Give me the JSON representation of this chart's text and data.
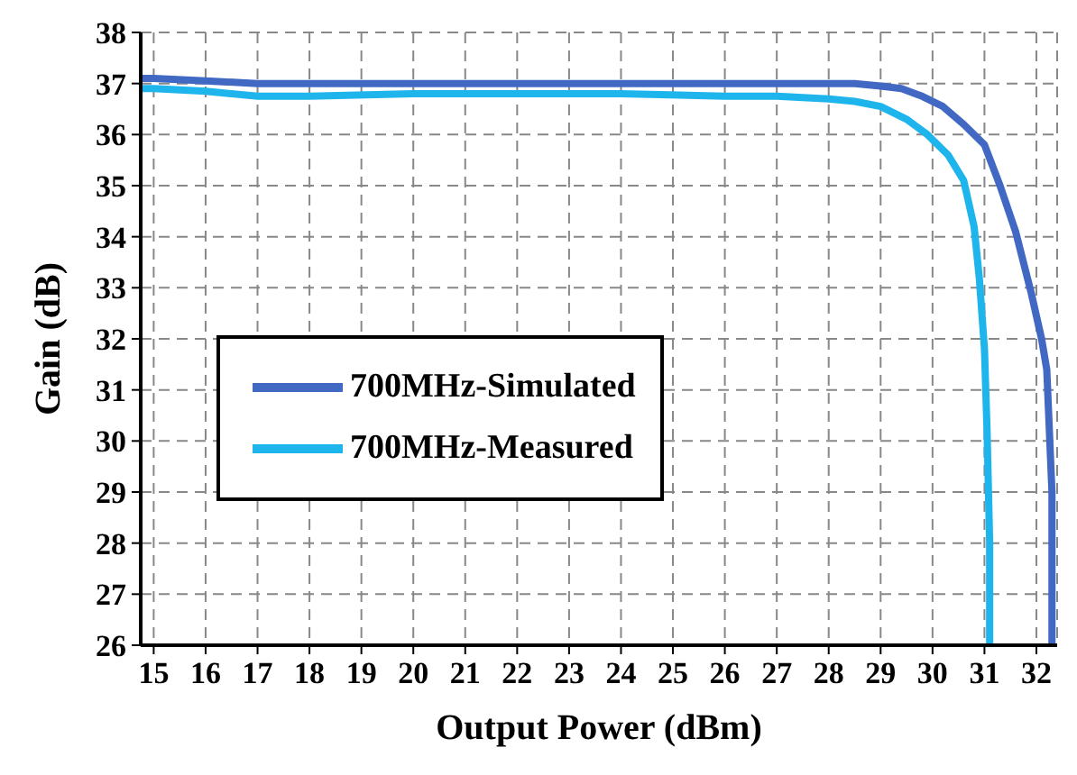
{
  "chart_data": {
    "type": "line",
    "xlabel": "Output Power (dBm)",
    "ylabel": "Gain (dB)",
    "series": [
      {
        "name": "700MHz-Simulated",
        "color": "#4169c4",
        "x": [
          14.75,
          15,
          16,
          17,
          18,
          20,
          22,
          24,
          26,
          27,
          28,
          28.5,
          29,
          29.4,
          29.8,
          30.2,
          30.6,
          31,
          31.3,
          31.6,
          31.9,
          32.1,
          32.2,
          32.3,
          32.3
        ],
        "values": [
          37.1,
          37.1,
          37.05,
          37.0,
          37.0,
          37.0,
          37.0,
          37.0,
          37.0,
          37.0,
          37.0,
          37.0,
          36.95,
          36.9,
          36.75,
          36.55,
          36.2,
          35.8,
          35.0,
          34.1,
          32.9,
          32.0,
          31.4,
          29,
          26
        ]
      },
      {
        "name": "700MHz-Measured",
        "color": "#1eb4ec",
        "x": [
          14.75,
          15,
          16,
          17,
          18,
          20,
          22,
          24,
          26,
          27,
          28,
          28.5,
          29,
          29.5,
          29.9,
          30.3,
          30.6,
          30.8,
          30.9,
          31.0,
          31.05,
          31.1,
          31.1
        ],
        "values": [
          36.9,
          36.9,
          36.85,
          36.75,
          36.75,
          36.8,
          36.8,
          36.8,
          36.75,
          36.75,
          36.7,
          36.65,
          36.55,
          36.3,
          36.0,
          35.6,
          35.1,
          34.2,
          33.2,
          31.8,
          30.2,
          28,
          26
        ]
      }
    ],
    "xlim": [
      14.75,
      32.4
    ],
    "xticks": [
      15,
      16,
      17,
      18,
      19,
      20,
      21,
      22,
      23,
      24,
      25,
      26,
      27,
      28,
      29,
      30,
      31,
      32
    ],
    "ylim": [
      26,
      38
    ],
    "yticks": [
      26,
      27,
      28,
      29,
      30,
      31,
      32,
      33,
      34,
      35,
      36,
      37,
      38
    ],
    "grid": true,
    "legend": "left",
    "line_style": "solid",
    "marker": "none"
  }
}
